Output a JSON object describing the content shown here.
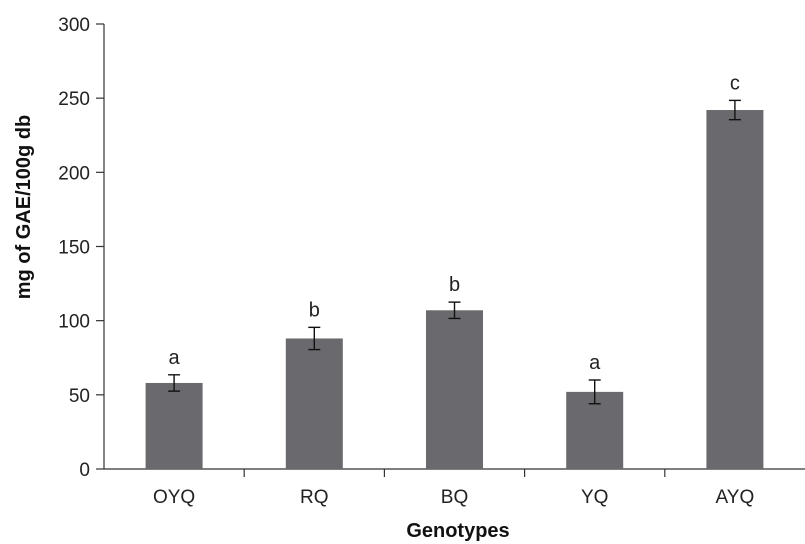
{
  "chart_data": {
    "type": "bar",
    "title": "",
    "xlabel": "Genotypes",
    "ylabel": "mg of GAE/100g db",
    "categories": [
      "OYQ",
      "RQ",
      "BQ",
      "YQ",
      "AYQ"
    ],
    "values": [
      58,
      88,
      107,
      52,
      242
    ],
    "errors": [
      5.5,
      7.5,
      5.5,
      8,
      6.5
    ],
    "significance_labels": [
      "a",
      "b",
      "b",
      "a",
      "c"
    ],
    "ylim": [
      0,
      300
    ],
    "yticks": [
      "0",
      "50",
      "100",
      "150",
      "200",
      "250",
      "300"
    ],
    "ytick_values": [
      0,
      50,
      100,
      150,
      200,
      250,
      300
    ],
    "grid": false,
    "bar_color": "#6a6a6e"
  }
}
